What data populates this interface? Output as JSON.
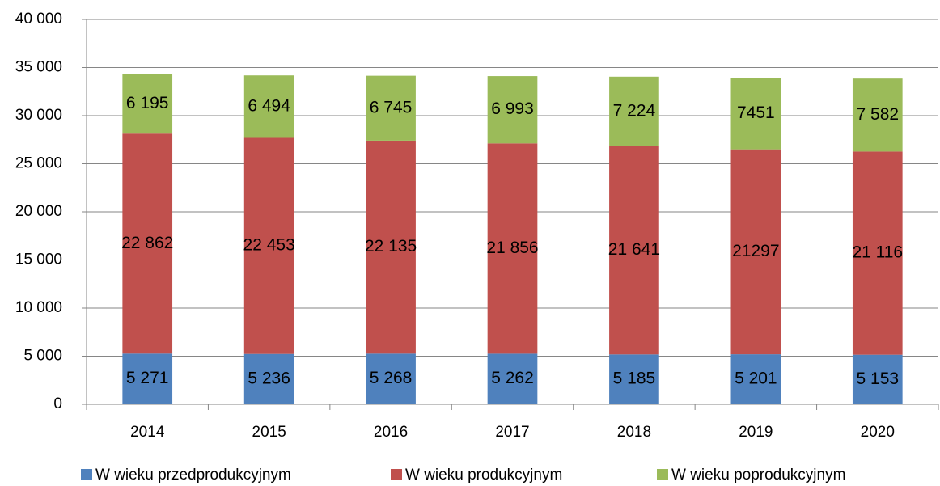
{
  "chart_data": {
    "type": "stacked_bar",
    "categories": [
      "2014",
      "2015",
      "2016",
      "2017",
      "2018",
      "2019",
      "2020"
    ],
    "series": [
      {
        "name": "W wieku przedprodukcyjnym",
        "color": "#4f81bd",
        "values": [
          5271,
          5236,
          5268,
          5262,
          5185,
          5201,
          5153
        ],
        "value_labels": [
          "5 271",
          "5 236",
          "5 268",
          "5 262",
          "5 185",
          "5 201",
          "5 153"
        ]
      },
      {
        "name": "W wieku produkcyjnym",
        "color": "#c0504d",
        "values": [
          22862,
          22453,
          22135,
          21856,
          21641,
          21297,
          21116
        ],
        "value_labels": [
          "22 862",
          "22 453",
          "22 135",
          "21 856",
          "21 641",
          "21297",
          "21 116"
        ]
      },
      {
        "name": "W wieku poprodukcyjnym",
        "color": "#9bbb59",
        "values": [
          6195,
          6494,
          6745,
          6993,
          7224,
          7451,
          7582
        ],
        "value_labels": [
          "6 195",
          "6 494",
          "6 745",
          "6 993",
          "7 224",
          "7451",
          "7 582"
        ]
      }
    ],
    "ylim": [
      0,
      40000
    ],
    "yticks": [
      0,
      {
        "value": 5000,
        "label": "5 000"
      },
      {
        "value": 10000,
        "label": "10 000"
      },
      {
        "value": 15000,
        "label": "15 000"
      },
      {
        "value": 20000,
        "label": "20 000"
      },
      {
        "value": 25000,
        "label": "25 000"
      },
      {
        "value": 30000,
        "label": "30 000"
      },
      {
        "value": 35000,
        "label": "35 000"
      },
      {
        "value": 40000,
        "label": "40 000"
      }
    ],
    "grid": true,
    "legend": "bottom"
  }
}
